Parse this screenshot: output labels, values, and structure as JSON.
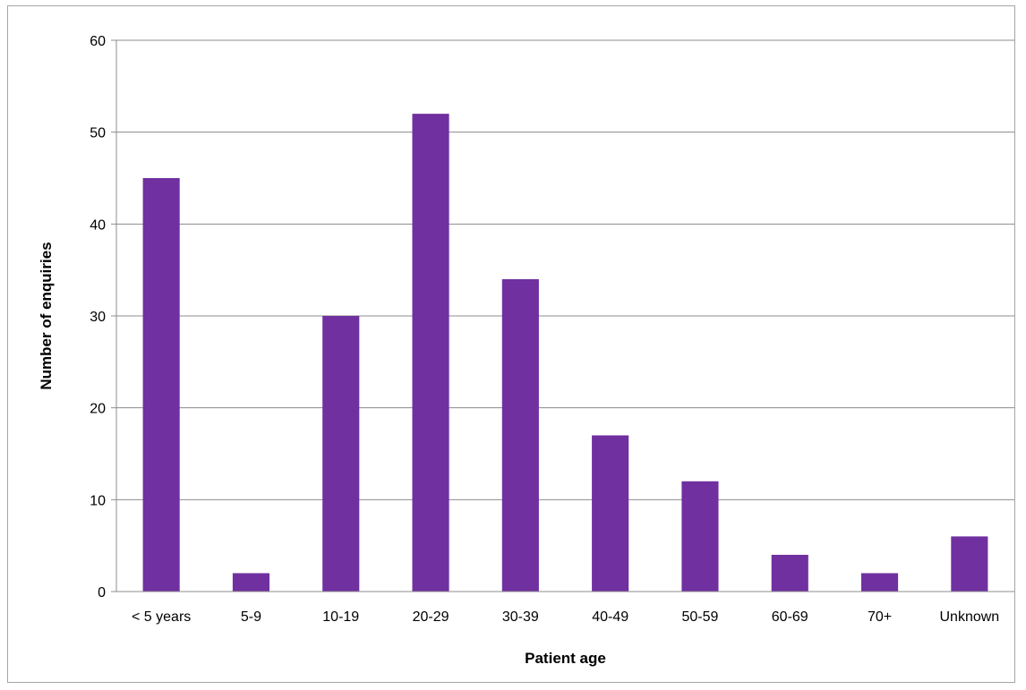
{
  "chart_data": {
    "type": "bar",
    "title": "",
    "xlabel": "Patient age",
    "ylabel": "Number of enquiries",
    "categories": [
      "< 5 years",
      "5-9",
      "10-19",
      "20-29",
      "30-39",
      "40-49",
      "50-59",
      "60-69",
      "70+",
      "Unknown"
    ],
    "values": [
      45,
      2,
      30,
      52,
      34,
      17,
      12,
      4,
      2,
      6
    ],
    "ylim": [
      0,
      60
    ],
    "yticks": [
      "0",
      "10",
      "20",
      "30",
      "40",
      "50",
      "60"
    ],
    "grid": true,
    "legend": "none",
    "bar_color": "#7030a0"
  }
}
